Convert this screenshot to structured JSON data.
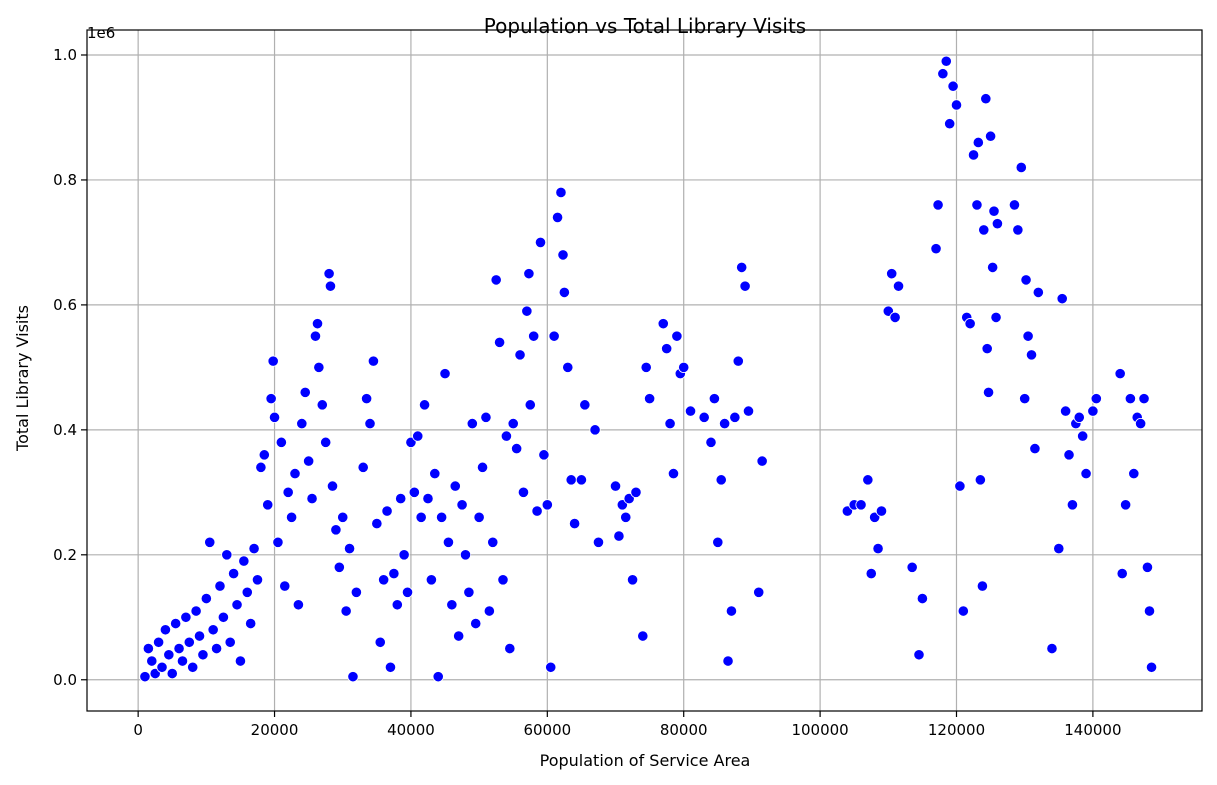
{
  "chart_data": {
    "type": "scatter",
    "title": "Population vs Total Library Visits",
    "xlabel": "Population of Service Area",
    "ylabel": "Total Library Visits",
    "offset_label": "1e6",
    "xlim": [
      -7500,
      156000
    ],
    "ylim": [
      -0.05,
      1.04
    ],
    "x_ticks": [
      0,
      20000,
      40000,
      60000,
      80000,
      100000,
      120000,
      140000
    ],
    "x_tick_labels": [
      "0",
      "20000",
      "40000",
      "60000",
      "80000",
      "100000",
      "120000",
      "140000"
    ],
    "y_ticks": [
      0.0,
      0.2,
      0.4,
      0.6,
      0.8,
      1.0
    ],
    "y_tick_labels": [
      "0.0",
      "0.2",
      "0.4",
      "0.6",
      "0.8",
      "1.0"
    ],
    "y_unit_multiplier": 1000000,
    "grid": true,
    "marker_color": "#0000ff",
    "series": [
      {
        "points": [
          [
            1000,
            0.005
          ],
          [
            1500,
            0.05
          ],
          [
            2000,
            0.03
          ],
          [
            2500,
            0.01
          ],
          [
            3000,
            0.06
          ],
          [
            3500,
            0.02
          ],
          [
            4000,
            0.08
          ],
          [
            4500,
            0.04
          ],
          [
            5000,
            0.01
          ],
          [
            5500,
            0.09
          ],
          [
            6000,
            0.05
          ],
          [
            6500,
            0.03
          ],
          [
            7000,
            0.1
          ],
          [
            7500,
            0.06
          ],
          [
            8000,
            0.02
          ],
          [
            8500,
            0.11
          ],
          [
            9000,
            0.07
          ],
          [
            9500,
            0.04
          ],
          [
            10000,
            0.13
          ],
          [
            10500,
            0.22
          ],
          [
            11000,
            0.08
          ],
          [
            11500,
            0.05
          ],
          [
            12000,
            0.15
          ],
          [
            12500,
            0.1
          ],
          [
            13000,
            0.2
          ],
          [
            13500,
            0.06
          ],
          [
            14000,
            0.17
          ],
          [
            14500,
            0.12
          ],
          [
            15000,
            0.03
          ],
          [
            15500,
            0.19
          ],
          [
            16000,
            0.14
          ],
          [
            16500,
            0.09
          ],
          [
            17000,
            0.21
          ],
          [
            17500,
            0.16
          ],
          [
            18000,
            0.34
          ],
          [
            18500,
            0.36
          ],
          [
            19000,
            0.28
          ],
          [
            19500,
            0.45
          ],
          [
            19800,
            0.51
          ],
          [
            20000,
            0.42
          ],
          [
            20500,
            0.22
          ],
          [
            21000,
            0.38
          ],
          [
            21500,
            0.15
          ],
          [
            22000,
            0.3
          ],
          [
            22500,
            0.26
          ],
          [
            23000,
            0.33
          ],
          [
            23500,
            0.12
          ],
          [
            24000,
            0.41
          ],
          [
            24500,
            0.46
          ],
          [
            25000,
            0.35
          ],
          [
            25500,
            0.29
          ],
          [
            26000,
            0.55
          ],
          [
            26300,
            0.57
          ],
          [
            26500,
            0.5
          ],
          [
            27000,
            0.44
          ],
          [
            27500,
            0.38
          ],
          [
            28000,
            0.65
          ],
          [
            28200,
            0.63
          ],
          [
            28500,
            0.31
          ],
          [
            29000,
            0.24
          ],
          [
            29500,
            0.18
          ],
          [
            30000,
            0.26
          ],
          [
            30500,
            0.11
          ],
          [
            31000,
            0.21
          ],
          [
            31500,
            0.005
          ],
          [
            32000,
            0.14
          ],
          [
            33000,
            0.34
          ],
          [
            33500,
            0.45
          ],
          [
            34000,
            0.41
          ],
          [
            34500,
            0.51
          ],
          [
            35000,
            0.25
          ],
          [
            35500,
            0.06
          ],
          [
            36000,
            0.16
          ],
          [
            36500,
            0.27
          ],
          [
            37000,
            0.02
          ],
          [
            37500,
            0.17
          ],
          [
            38000,
            0.12
          ],
          [
            38500,
            0.29
          ],
          [
            39000,
            0.2
          ],
          [
            39500,
            0.14
          ],
          [
            40000,
            0.38
          ],
          [
            40500,
            0.3
          ],
          [
            41000,
            0.39
          ],
          [
            41500,
            0.26
          ],
          [
            42000,
            0.44
          ],
          [
            42500,
            0.29
          ],
          [
            43000,
            0.16
          ],
          [
            43500,
            0.33
          ],
          [
            44000,
            0.005
          ],
          [
            44500,
            0.26
          ],
          [
            45000,
            0.49
          ],
          [
            45500,
            0.22
          ],
          [
            46000,
            0.12
          ],
          [
            46500,
            0.31
          ],
          [
            47000,
            0.07
          ],
          [
            47500,
            0.28
          ],
          [
            48000,
            0.2
          ],
          [
            48500,
            0.14
          ],
          [
            49000,
            0.41
          ],
          [
            49500,
            0.09
          ],
          [
            50000,
            0.26
          ],
          [
            50500,
            0.34
          ],
          [
            51000,
            0.42
          ],
          [
            51500,
            0.11
          ],
          [
            52000,
            0.22
          ],
          [
            52500,
            0.64
          ],
          [
            53000,
            0.54
          ],
          [
            53500,
            0.16
          ],
          [
            54000,
            0.39
          ],
          [
            54500,
            0.05
          ],
          [
            55000,
            0.41
          ],
          [
            55500,
            0.37
          ],
          [
            56000,
            0.52
          ],
          [
            56500,
            0.3
          ],
          [
            57000,
            0.59
          ],
          [
            57300,
            0.65
          ],
          [
            57500,
            0.44
          ],
          [
            58000,
            0.55
          ],
          [
            58500,
            0.27
          ],
          [
            59000,
            0.7
          ],
          [
            59500,
            0.36
          ],
          [
            60000,
            0.28
          ],
          [
            60500,
            0.02
          ],
          [
            61000,
            0.55
          ],
          [
            61500,
            0.74
          ],
          [
            62000,
            0.78
          ],
          [
            62300,
            0.68
          ],
          [
            62500,
            0.62
          ],
          [
            63000,
            0.5
          ],
          [
            63500,
            0.32
          ],
          [
            64000,
            0.25
          ],
          [
            65000,
            0.32
          ],
          [
            65500,
            0.44
          ],
          [
            67000,
            0.4
          ],
          [
            67500,
            0.22
          ],
          [
            70000,
            0.31
          ],
          [
            70500,
            0.23
          ],
          [
            71000,
            0.28
          ],
          [
            71500,
            0.26
          ],
          [
            72000,
            0.29
          ],
          [
            72500,
            0.16
          ],
          [
            73000,
            0.3
          ],
          [
            74000,
            0.07
          ],
          [
            74500,
            0.5
          ],
          [
            75000,
            0.45
          ],
          [
            77000,
            0.57
          ],
          [
            77500,
            0.53
          ],
          [
            78000,
            0.41
          ],
          [
            78500,
            0.33
          ],
          [
            79000,
            0.55
          ],
          [
            79500,
            0.49
          ],
          [
            80000,
            0.5
          ],
          [
            81000,
            0.43
          ],
          [
            83000,
            0.42
          ],
          [
            84000,
            0.38
          ],
          [
            84500,
            0.45
          ],
          [
            85000,
            0.22
          ],
          [
            85500,
            0.32
          ],
          [
            86000,
            0.41
          ],
          [
            86500,
            0.03
          ],
          [
            87000,
            0.11
          ],
          [
            87500,
            0.42
          ],
          [
            88000,
            0.51
          ],
          [
            88500,
            0.66
          ],
          [
            89000,
            0.63
          ],
          [
            89500,
            0.43
          ],
          [
            91000,
            0.14
          ],
          [
            91500,
            0.35
          ],
          [
            104000,
            0.27
          ],
          [
            105000,
            0.28
          ],
          [
            106000,
            0.28
          ],
          [
            107000,
            0.32
          ],
          [
            107500,
            0.17
          ],
          [
            108000,
            0.26
          ],
          [
            108500,
            0.21
          ],
          [
            109000,
            0.27
          ],
          [
            110000,
            0.59
          ],
          [
            110500,
            0.65
          ],
          [
            111000,
            0.58
          ],
          [
            111500,
            0.63
          ],
          [
            113500,
            0.18
          ],
          [
            114500,
            0.04
          ],
          [
            115000,
            0.13
          ],
          [
            117000,
            0.69
          ],
          [
            117300,
            0.76
          ],
          [
            118000,
            0.97
          ],
          [
            118500,
            0.99
          ],
          [
            119000,
            0.89
          ],
          [
            119500,
            0.95
          ],
          [
            120000,
            0.92
          ],
          [
            120500,
            0.31
          ],
          [
            121000,
            0.11
          ],
          [
            121500,
            0.58
          ],
          [
            122000,
            0.57
          ],
          [
            122500,
            0.84
          ],
          [
            123000,
            0.76
          ],
          [
            123200,
            0.86
          ],
          [
            123500,
            0.32
          ],
          [
            124000,
            0.72
          ],
          [
            124300,
            0.93
          ],
          [
            124500,
            0.53
          ],
          [
            125000,
            0.87
          ],
          [
            125300,
            0.66
          ],
          [
            125500,
            0.75
          ],
          [
            126000,
            0.73
          ],
          [
            128500,
            0.76
          ],
          [
            129000,
            0.72
          ],
          [
            129500,
            0.82
          ],
          [
            130000,
            0.45
          ],
          [
            130200,
            0.64
          ],
          [
            130500,
            0.55
          ],
          [
            131000,
            0.52
          ],
          [
            131500,
            0.37
          ],
          [
            132000,
            0.62
          ],
          [
            134000,
            0.05
          ],
          [
            135000,
            0.21
          ],
          [
            135500,
            0.61
          ],
          [
            136000,
            0.43
          ],
          [
            136500,
            0.36
          ],
          [
            137000,
            0.28
          ],
          [
            137500,
            0.41
          ],
          [
            138000,
            0.42
          ],
          [
            138500,
            0.39
          ],
          [
            139000,
            0.33
          ],
          [
            140000,
            0.43
          ],
          [
            140500,
            0.45
          ],
          [
            144000,
            0.49
          ],
          [
            144300,
            0.17
          ],
          [
            144800,
            0.28
          ],
          [
            145500,
            0.45
          ],
          [
            146000,
            0.33
          ],
          [
            146500,
            0.42
          ],
          [
            147000,
            0.41
          ],
          [
            147500,
            0.45
          ],
          [
            148000,
            0.18
          ],
          [
            148300,
            0.11
          ],
          [
            148600,
            0.02
          ],
          [
            123800,
            0.15
          ],
          [
            124700,
            0.46
          ],
          [
            125800,
            0.58
          ]
        ]
      }
    ]
  }
}
